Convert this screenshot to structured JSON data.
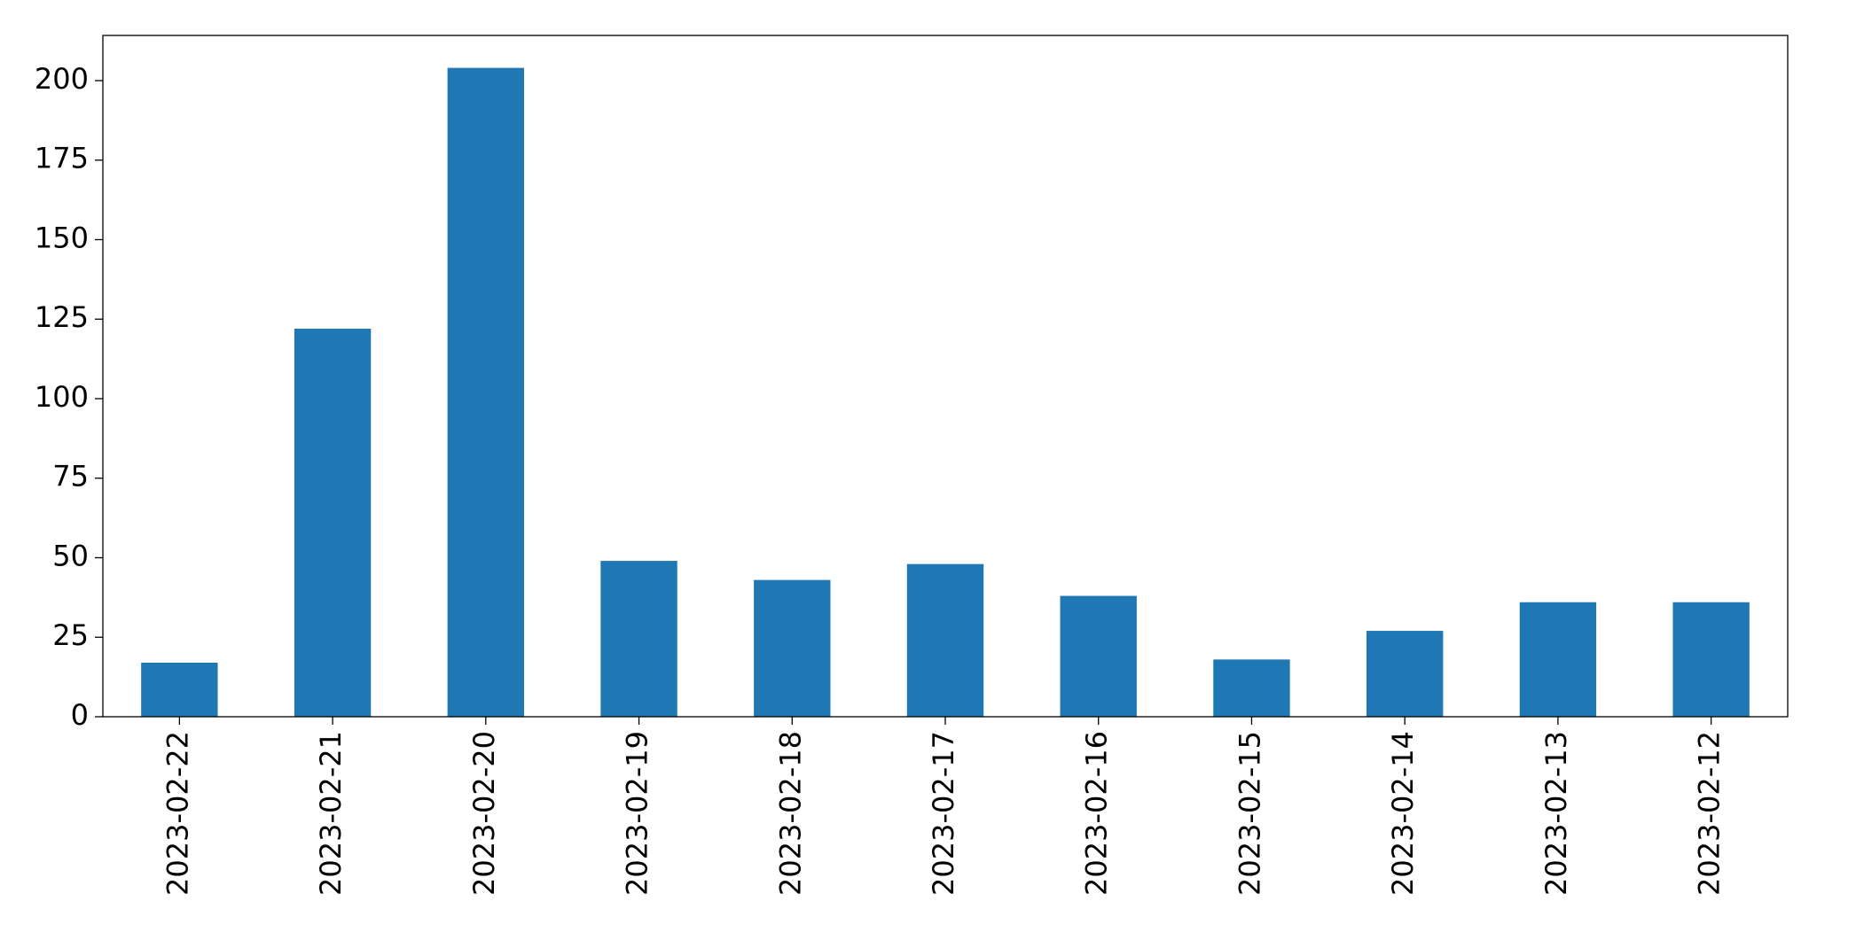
{
  "chart_data": {
    "type": "bar",
    "categories": [
      "2023-02-22",
      "2023-02-21",
      "2023-02-20",
      "2023-02-19",
      "2023-02-18",
      "2023-02-17",
      "2023-02-16",
      "2023-02-15",
      "2023-02-14",
      "2023-02-13",
      "2023-02-12"
    ],
    "values": [
      17,
      122,
      204,
      49,
      43,
      48,
      38,
      18,
      27,
      36,
      36
    ],
    "color": "#1f77b4",
    "ylim": [
      0,
      214.2
    ],
    "yticks": [
      0,
      25,
      50,
      75,
      100,
      125,
      150,
      175,
      200
    ],
    "grid": false
  }
}
